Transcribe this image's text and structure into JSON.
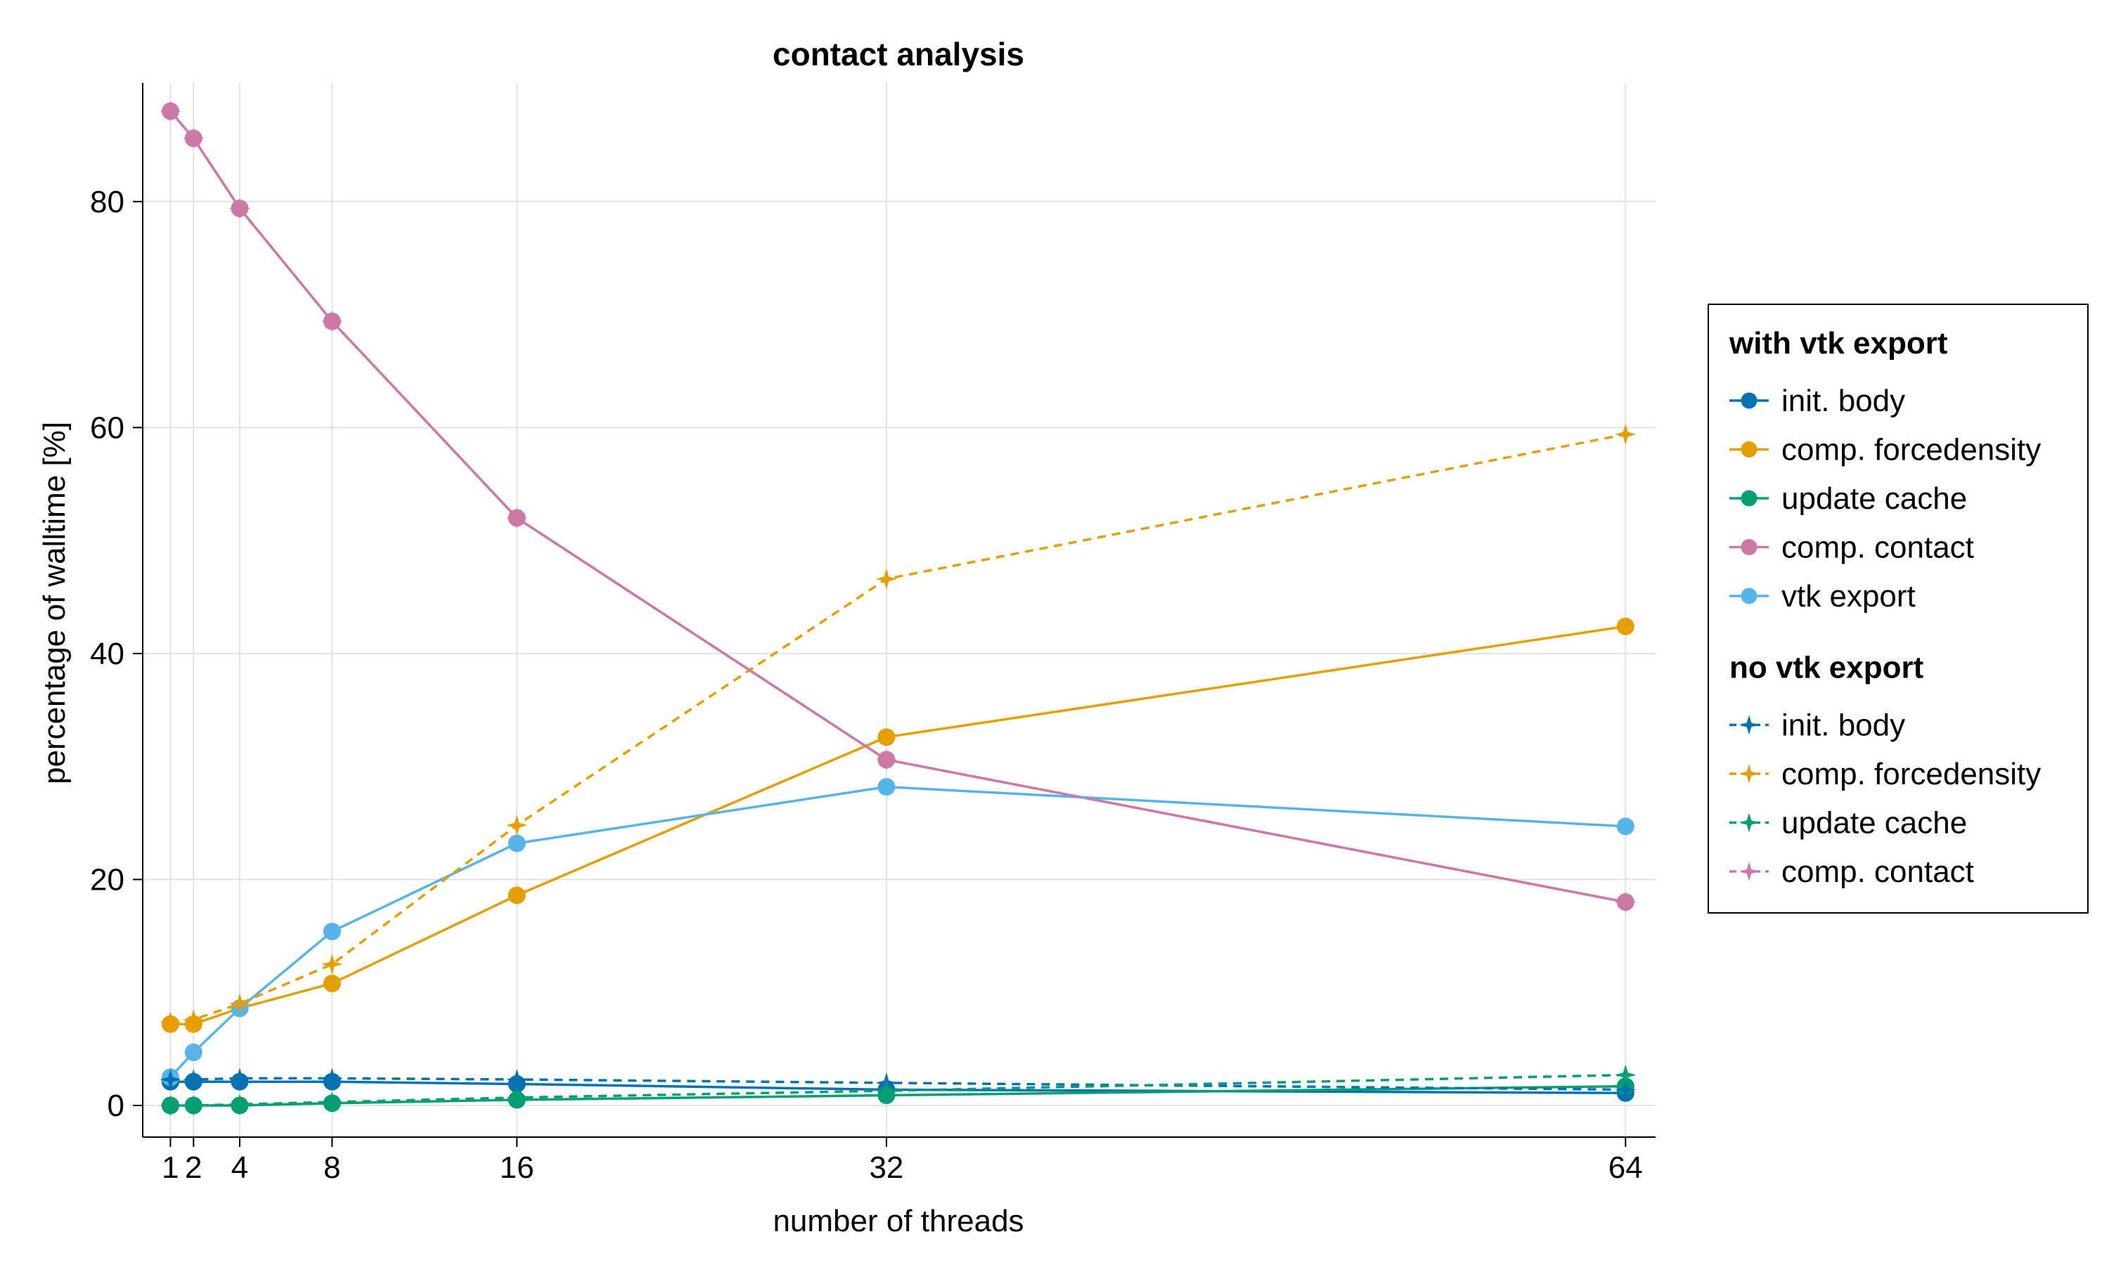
{
  "chart_data": {
    "type": "line",
    "title": "contact analysis",
    "xlabel": "number of threads",
    "ylabel": "percentage of walltime [%]",
    "x": [
      1,
      2,
      4,
      8,
      16,
      32,
      64
    ],
    "xlim": [
      -0.2,
      65.3
    ],
    "ylim": [
      -2.8,
      90.5
    ],
    "x_ticks": [
      1,
      2,
      4,
      8,
      16,
      32,
      64
    ],
    "y_ticks": [
      0,
      20,
      40,
      60,
      80
    ],
    "grid": true,
    "legend_position": "right",
    "groups": [
      {
        "name": "with vtk export",
        "marker": "circle",
        "line_style": "solid",
        "series": [
          {
            "name": "init. body",
            "color": "#0072B2",
            "values": [
              2.1,
              2.1,
              2.1,
              2.1,
              1.9,
              1.4,
              1.1
            ]
          },
          {
            "name": "comp. forcedensity",
            "color": "#E69F00",
            "values": [
              7.2,
              7.2,
              8.6,
              10.8,
              18.6,
              32.6,
              42.4
            ]
          },
          {
            "name": "update cache",
            "color": "#009E73",
            "values": [
              0.0,
              0.0,
              0.0,
              0.2,
              0.5,
              0.9,
              1.7
            ]
          },
          {
            "name": "comp. contact",
            "color": "#CC79A7",
            "values": [
              88.0,
              85.6,
              79.4,
              69.4,
              52.0,
              30.6,
              18.0
            ]
          },
          {
            "name": "vtk export",
            "color": "#56B4E9",
            "values": [
              2.5,
              4.7,
              8.6,
              15.4,
              23.2,
              28.2,
              24.7
            ]
          }
        ]
      },
      {
        "name": "no vtk export",
        "marker": "star",
        "line_style": "dashed",
        "series": [
          {
            "name": "init. body",
            "color": "#0072B2",
            "values": [
              2.3,
              2.3,
              2.4,
              2.4,
              2.3,
              2.0,
              1.4
            ]
          },
          {
            "name": "comp. forcedensity",
            "color": "#E69F00",
            "values": [
              7.4,
              7.6,
              9.0,
              12.5,
              24.8,
              46.6,
              59.4
            ]
          },
          {
            "name": "update cache",
            "color": "#009E73",
            "values": [
              0.0,
              0.0,
              0.1,
              0.3,
              0.7,
              1.3,
              2.7
            ]
          },
          {
            "name": "comp. contact",
            "color": "#CC79A7",
            "values": [
              88.0,
              85.6,
              79.4,
              69.4,
              52.0,
              30.6,
              18.0
            ]
          }
        ]
      }
    ]
  }
}
